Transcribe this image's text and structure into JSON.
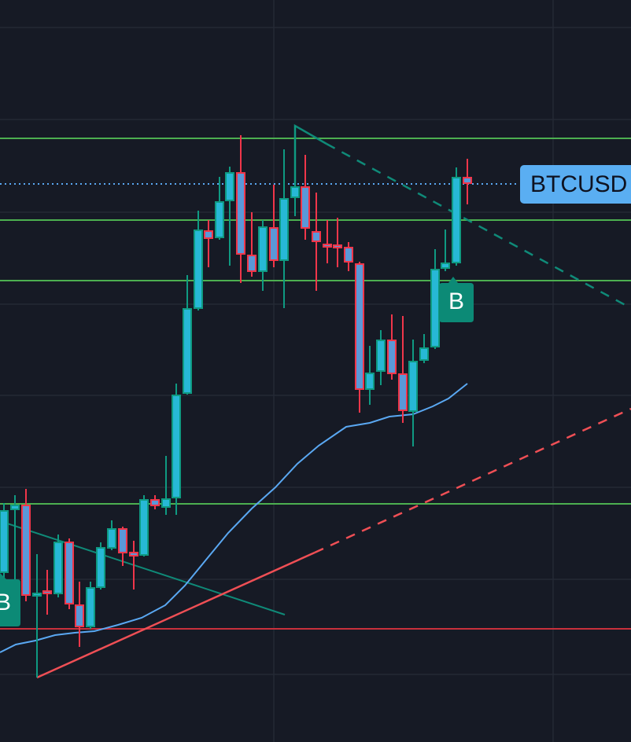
{
  "symbol_label": "BTCUSD",
  "signals": [
    "B",
    "B"
  ]
}
